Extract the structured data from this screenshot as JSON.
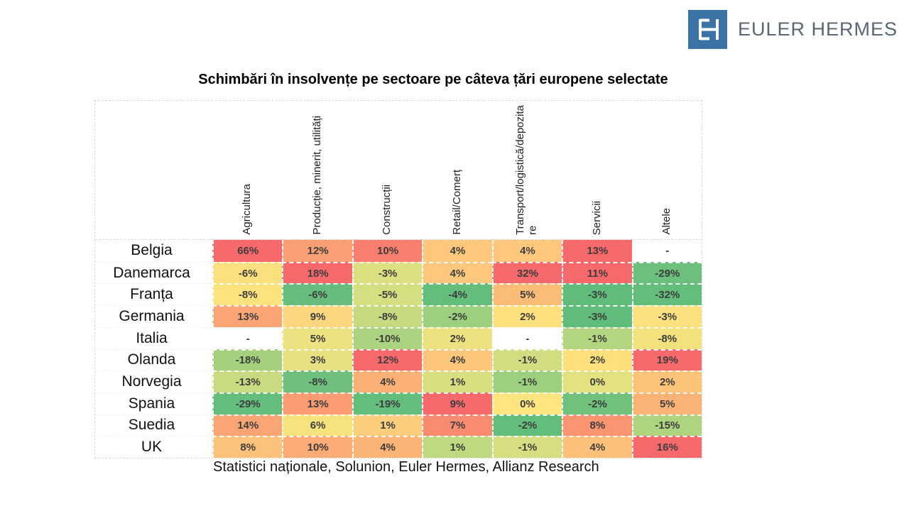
{
  "logo": {
    "monogram": "EH",
    "brand": "EULER HERMES"
  },
  "title": "Schimbări în insolvențe pe sectoare pe câteva țări europene selectate",
  "source": "Statistici naționale, Solunion, Euler Hermes, Allianz Research",
  "colors": {
    "logo_blue": "#3c73a6",
    "logo_text": "#5a6772",
    "scale_red": "#F8696B",
    "scale_yellow": "#FFEB84",
    "scale_green": "#63BE7B",
    "empty_cell": "#FFFFFF"
  },
  "chart_data": {
    "type": "heatmap",
    "title": "Schimbări în insolvențe pe sectoare pe câteva țări europene selectate",
    "unit": "%",
    "missing_marker": "-",
    "legend_position": "none",
    "columns": [
      "Agricultura",
      "Producție, minerit, utilități",
      "Construcții",
      "Retail/Comerț",
      "Transport/logistică/depozitare",
      "Servicii",
      "Altele"
    ],
    "rows": [
      "Belgia",
      "Danemarca",
      "Franța",
      "Germania",
      "Italia",
      "Olanda",
      "Norvegia",
      "Spania",
      "Suedia",
      "UK"
    ],
    "values": [
      [
        66,
        12,
        10,
        4,
        4,
        13,
        null
      ],
      [
        -6,
        18,
        -3,
        4,
        32,
        11,
        -29
      ],
      [
        -8,
        -6,
        -5,
        -4,
        5,
        -3,
        -32
      ],
      [
        13,
        9,
        -8,
        -2,
        2,
        -3,
        -3
      ],
      [
        null,
        5,
        -10,
        2,
        null,
        -1,
        -8
      ],
      [
        -18,
        3,
        12,
        4,
        -1,
        2,
        19
      ],
      [
        -13,
        -8,
        4,
        1,
        -1,
        0,
        2
      ],
      [
        -29,
        13,
        -19,
        9,
        0,
        -2,
        5
      ],
      [
        14,
        6,
        1,
        7,
        -2,
        8,
        -15
      ],
      [
        8,
        10,
        4,
        1,
        -1,
        4,
        16
      ]
    ],
    "cell_colors": [
      [
        "#F8696B",
        "#FA9E73",
        "#F87F70",
        "#FDC87D",
        "#FDC87D",
        "#F8696B",
        "#FFFFFF"
      ],
      [
        "#FCE07E",
        "#F8696B",
        "#DCE081",
        "#FDC87D",
        "#F8696B",
        "#F8696B",
        "#6CBF7C"
      ],
      [
        "#FCE37E",
        "#66BD7E",
        "#D5DE81",
        "#63BE7B",
        "#FBBC78",
        "#5FBC7A",
        "#63BE7B"
      ],
      [
        "#FBA575",
        "#FCD67E",
        "#C6DA80",
        "#9CCF7E",
        "#FFE07D",
        "#5FBC7A",
        "#FCE17E"
      ],
      [
        "#FFFFFF",
        "#EDE281",
        "#ACD37F",
        "#EDE281",
        "#FFFFFF",
        "#B3D57F",
        "#F2E27E"
      ],
      [
        "#A5D17E",
        "#E8E181",
        "#F8696B",
        "#FCC77C",
        "#D2DD81",
        "#FFDF7C",
        "#F8696B"
      ],
      [
        "#C9DB80",
        "#6FC07C",
        "#FBB076",
        "#D8DF81",
        "#9CD07E",
        "#E3E281",
        "#FCC379"
      ],
      [
        "#63BE7B",
        "#FA9B72",
        "#63BE7B",
        "#F8696B",
        "#FFE580",
        "#70C17C",
        "#FBB375"
      ],
      [
        "#FBA575",
        "#F7E37E",
        "#FCCD7D",
        "#F98B70",
        "#63BE7B",
        "#FA9471",
        "#AFD47F"
      ],
      [
        "#FCC17B",
        "#FBAB75",
        "#FBB476",
        "#BED97F",
        "#D6DE81",
        "#FCC07A",
        "#F8696B"
      ]
    ]
  }
}
